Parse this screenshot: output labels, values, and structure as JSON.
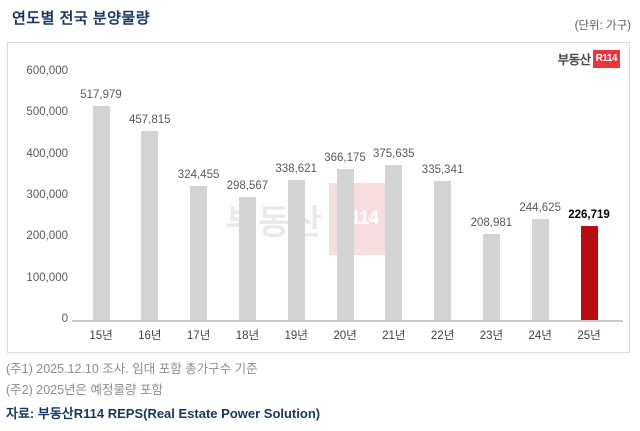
{
  "title": "연도별 전국 분양물량",
  "unit_label": "(단위: 가구)",
  "logo": {
    "prefix": "부동산",
    "badge": "R114"
  },
  "watermark": {
    "prefix": "부동산",
    "badge": "R114"
  },
  "chart_data": {
    "type": "bar",
    "title": "연도별 전국 분양물량",
    "xlabel": "",
    "ylabel": "",
    "unit": "가구",
    "categories": [
      "15년",
      "16년",
      "17년",
      "18년",
      "19년",
      "20년",
      "21년",
      "22년",
      "23년",
      "24년",
      "25년"
    ],
    "values": [
      517979,
      457815,
      324455,
      298567,
      338621,
      366175,
      375635,
      335341,
      208981,
      244625,
      226719
    ],
    "value_labels": [
      "517,979",
      "457,815",
      "324,455",
      "298,567",
      "338,621",
      "366,175",
      "375,635",
      "335,341",
      "208,981",
      "244,625",
      "226,719"
    ],
    "highlight_index": 10,
    "ylim": [
      0,
      600000
    ],
    "ytick_interval": 100000,
    "ytick_labels": [
      "0",
      "100,000",
      "200,000",
      "300,000",
      "400,000",
      "500,000",
      "600,000"
    ],
    "bar_color": "#d4d4d4",
    "highlight_color": "#b60d10",
    "grid": false,
    "legend": "none"
  },
  "notes": [
    "(주1) 2025.12.10 조사. 임대 포함 총가구수 기준",
    "(주2) 2025년은 예정물량 포함"
  ],
  "source": "자료: 부동산R114 REPS(Real Estate Power Solution)"
}
